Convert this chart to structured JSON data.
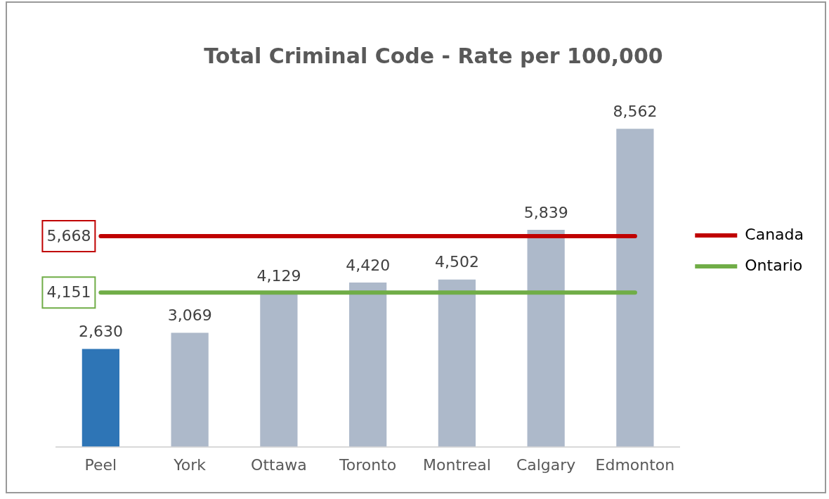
{
  "chart_data": {
    "type": "bar",
    "title": "Total Criminal Code - Rate per 100,000",
    "categories": [
      "Peel",
      "York",
      "Ottawa",
      "Toronto",
      "Montreal",
      "Calgary",
      "Edmonton"
    ],
    "series": [
      {
        "values": [
          2630,
          3069,
          4129,
          4420,
          4502,
          5839,
          8562
        ],
        "colors": [
          "#2e75b6",
          "#adb9ca",
          "#adb9ca",
          "#adb9ca",
          "#adb9ca",
          "#adb9ca",
          "#adb9ca"
        ],
        "value_labels": [
          "2,630",
          "3,069",
          "4,129",
          "4,420",
          "4,502",
          "5,839",
          "8,562"
        ]
      },
      {
        "type": "line",
        "name": "Canada",
        "color": "#c00000",
        "values": [
          5668,
          5668,
          5668,
          5668,
          5668,
          5668,
          5668
        ],
        "value_labels": [
          "5,668",
          null,
          null,
          null,
          null,
          null,
          null
        ]
      },
      {
        "type": "line",
        "name": "Ontario",
        "color": "#70ad47",
        "values": [
          4151,
          4151,
          4151,
          4151,
          4151,
          4151,
          4151
        ],
        "value_labels": [
          "4,151",
          null,
          null,
          null,
          null,
          null,
          null
        ]
      }
    ],
    "grid": false,
    "legend": "right",
    "marker": "none"
  }
}
